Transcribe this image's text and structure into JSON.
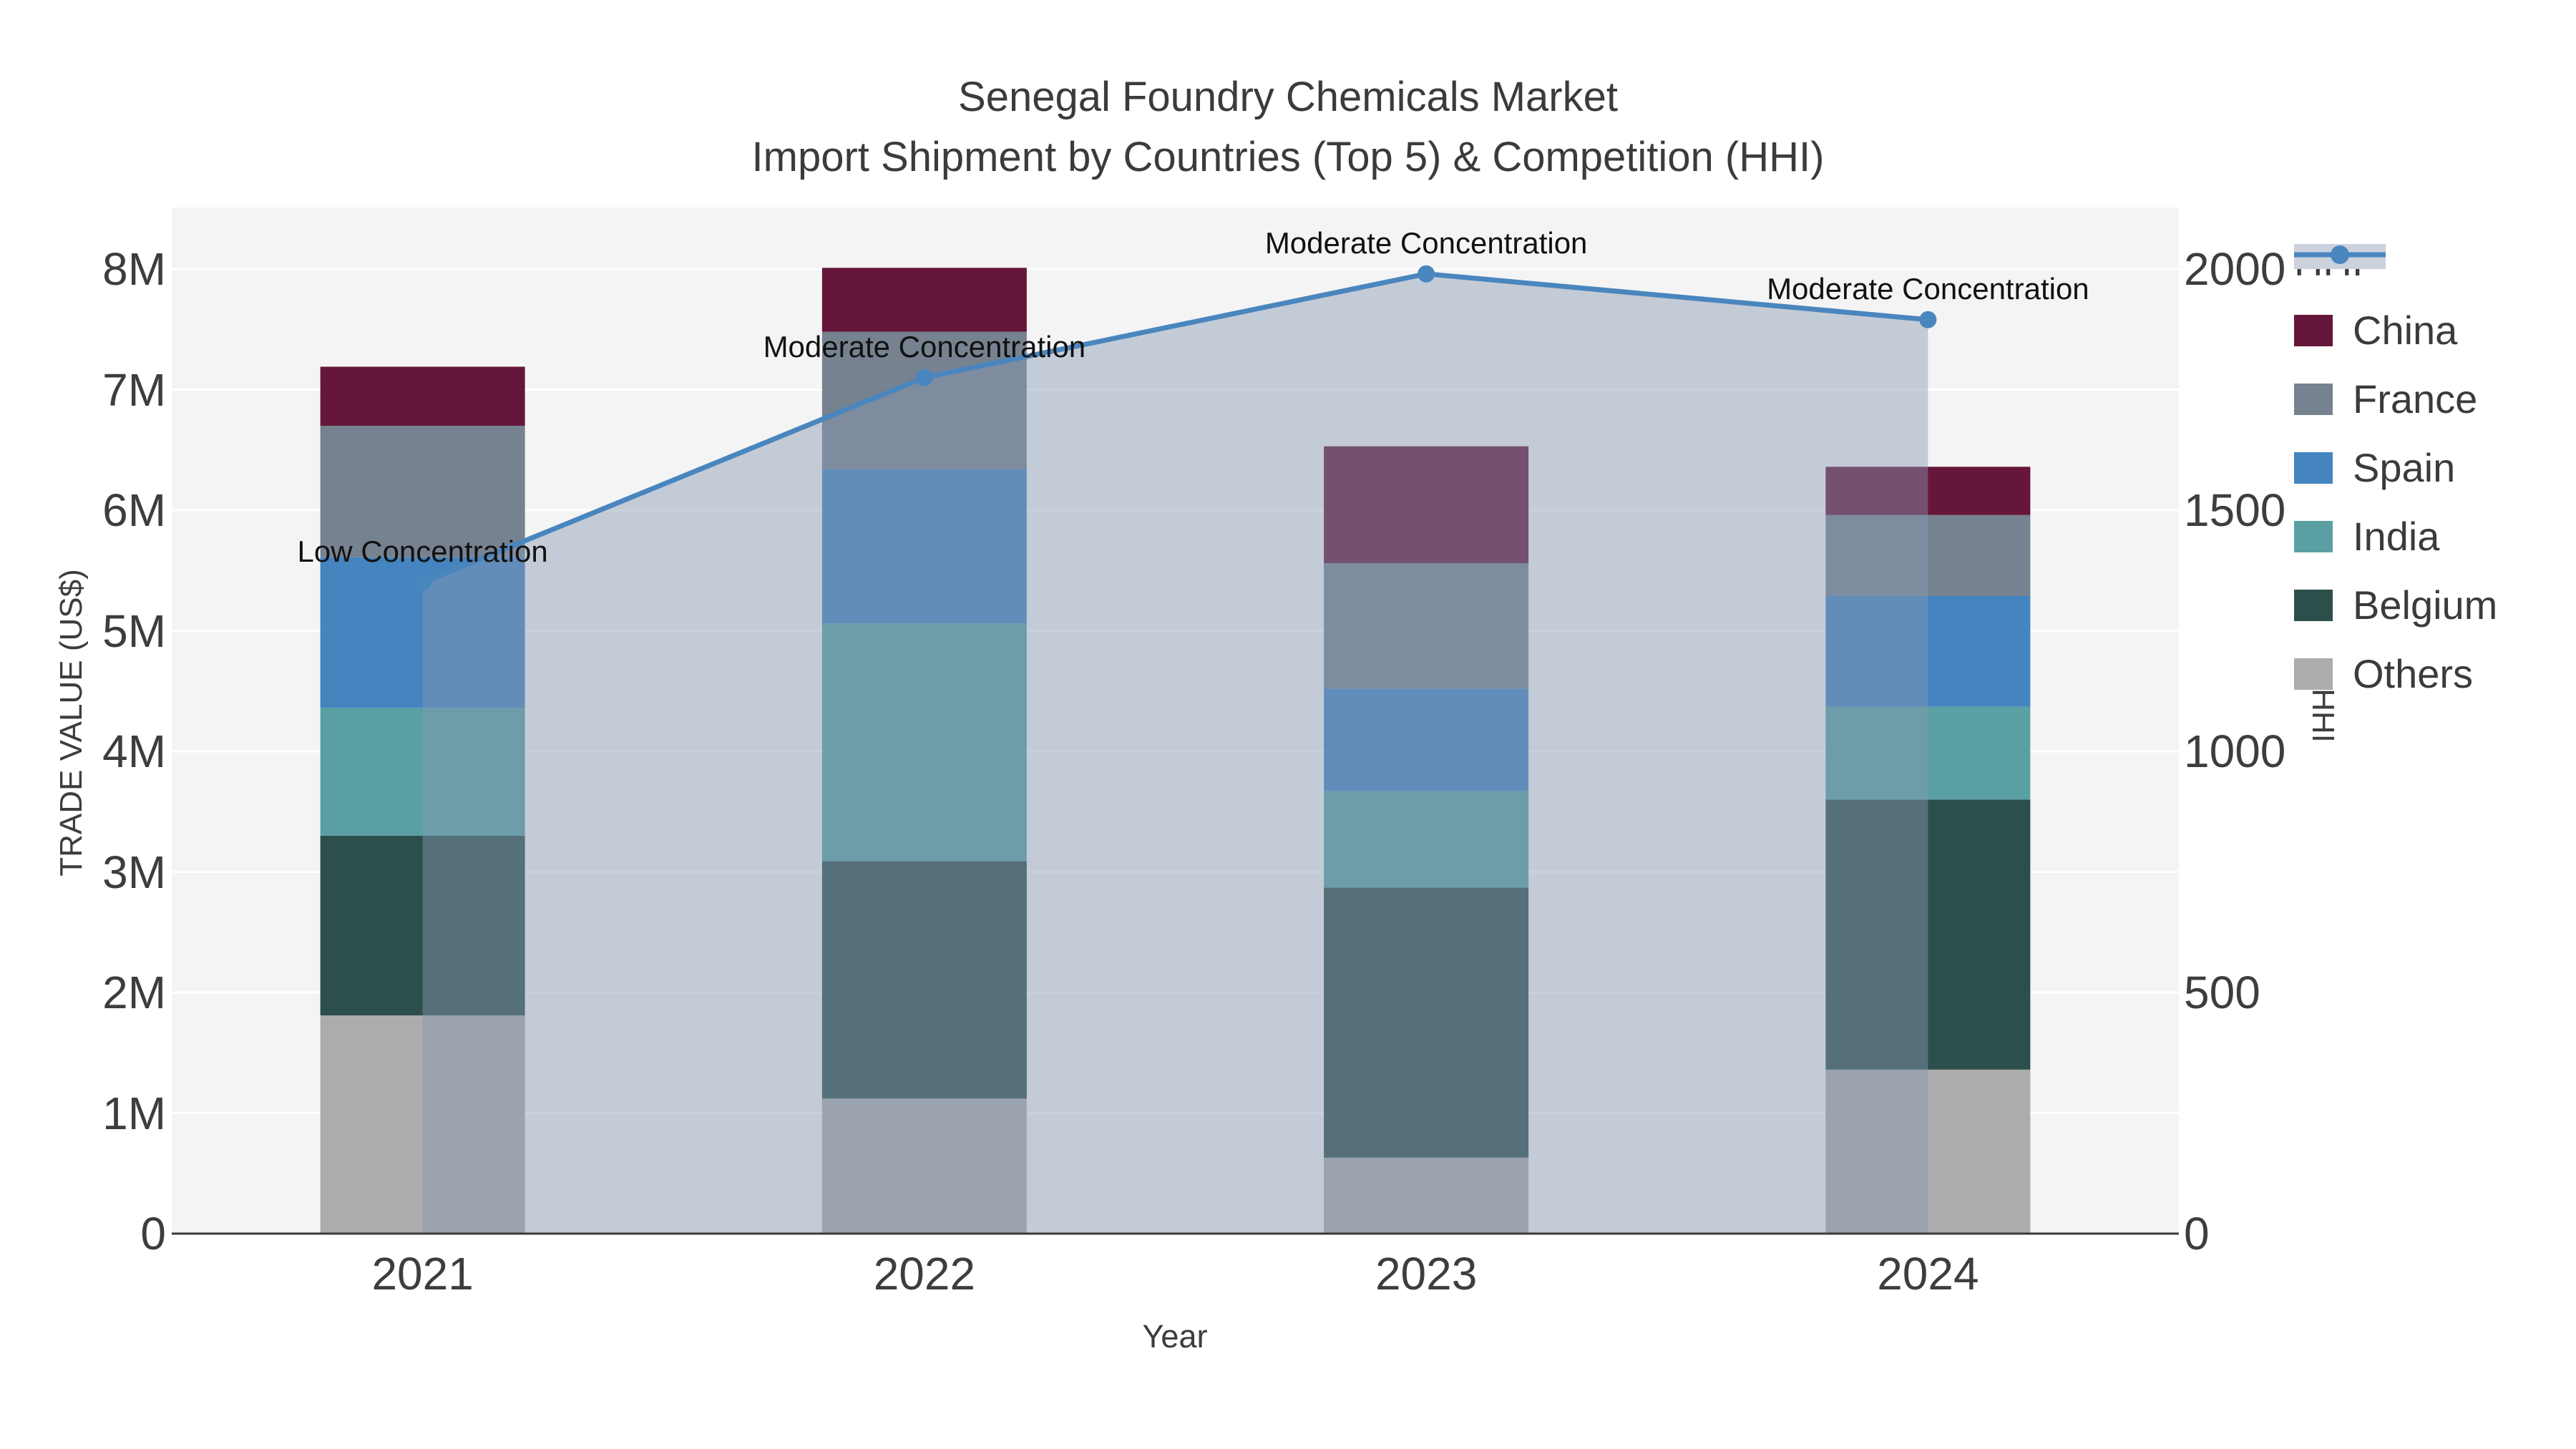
{
  "title": {
    "line1": "Senegal Foundry Chemicals Market",
    "line2": "Import Shipment by Countries (Top 5) & Competition (HHI)"
  },
  "colors": {
    "plot_bg": "#F4F4F4",
    "gridline": "#FFFFFF",
    "baseline": "#3A3A3A",
    "axis_text": "#3D3D3D",
    "title_text": "#3B3B3B",
    "annotation_text": "#111111",
    "hhi_line": "#4A86BE",
    "hhi_area": "rgba(136,152,180,0.45)",
    "legend_hhi_band": "#CBD2DE"
  },
  "chart_data": {
    "type": "combo: stacked bar (left axis) + line with area fill (right axis)",
    "categories": [
      "2021",
      "2022",
      "2023",
      "2024"
    ],
    "xlabel": "Year",
    "y_left": {
      "label": "TRADE VALUE (US$)",
      "tick_labels": [
        "0",
        "1M",
        "2M",
        "3M",
        "4M",
        "5M",
        "6M",
        "7M",
        "8M"
      ],
      "tick_values_M": [
        0,
        1,
        2,
        3,
        4,
        5,
        6,
        7,
        8
      ],
      "max_M": 8
    },
    "y_right": {
      "label": "HHI",
      "tick_labels": [
        "0",
        "500",
        "1000",
        "1500",
        "2000"
      ],
      "tick_values": [
        0,
        500,
        1000,
        1500,
        2000
      ],
      "max": 2000
    },
    "bar_series_bottom_to_top": [
      {
        "name": "Others",
        "color": "#ACACAC",
        "values_usd_m": [
          1.81,
          1.12,
          0.63,
          1.36
        ]
      },
      {
        "name": "Belgium",
        "color": "#2C4F4B",
        "values_usd_m": [
          1.49,
          1.97,
          2.24,
          2.24
        ]
      },
      {
        "name": "India",
        "color": "#5AA0A2",
        "values_usd_m": [
          1.06,
          1.97,
          0.8,
          0.77
        ]
      },
      {
        "name": "Spain",
        "color": "#4484BF",
        "values_usd_m": [
          1.25,
          1.28,
          0.85,
          0.92
        ]
      },
      {
        "name": "France",
        "color": "#76828F",
        "values_usd_m": [
          1.09,
          1.14,
          1.04,
          0.67
        ]
      },
      {
        "name": "China",
        "color": "#65163A",
        "values_usd_m": [
          0.49,
          0.53,
          0.97,
          0.4
        ]
      }
    ],
    "bar_totals_usd_m": [
      7.19,
      8.01,
      6.53,
      6.36
    ],
    "hhi_line": {
      "name": "HHI",
      "values": [
        1350,
        1775,
        1990,
        1895
      ],
      "color": "#4A86BE",
      "area_fill": "rgba(136,152,180,0.45)"
    },
    "annotations": [
      {
        "category": "2021",
        "text": "Low Concentration"
      },
      {
        "category": "2022",
        "text": "Moderate Concentration"
      },
      {
        "category": "2023",
        "text": "Moderate Concentration"
      },
      {
        "category": "2024",
        "text": "Moderate Concentration"
      }
    ],
    "legend_order": [
      "HHI",
      "China",
      "France",
      "Spain",
      "India",
      "Belgium",
      "Others"
    ],
    "grid": "horizontal white gridlines every 1M, on",
    "legend_position": "outside right, top"
  }
}
